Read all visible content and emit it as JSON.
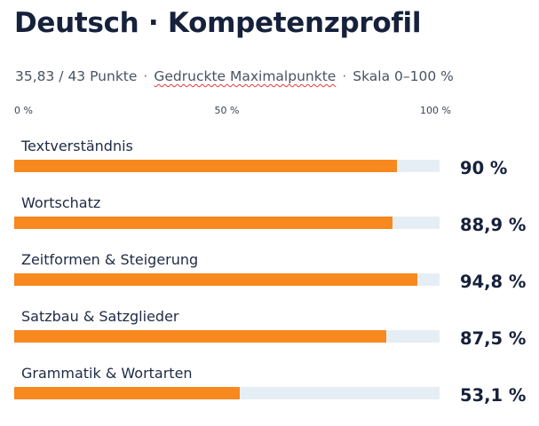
{
  "title": "Deutsch · Kompetenzprofil",
  "subtitle": {
    "points": "35,83 / 43 Punkte",
    "separator": "·",
    "basis": "Gedruckte Maximalpunkte",
    "scale": "Skala 0–100 %"
  },
  "chart_data": {
    "type": "bar",
    "orientation": "horizontal",
    "title": "Deutsch · Kompetenzprofil",
    "xlim": [
      0,
      100
    ],
    "ticks": [
      {
        "value": 0,
        "label": "0 %"
      },
      {
        "value": 50,
        "label": "50 %"
      },
      {
        "value": 100,
        "label": "100 %"
      }
    ],
    "categories": [
      "Textverständnis",
      "Wortschatz",
      "Zeitformen & Steigerung",
      "Satzbau & Satzglieder",
      "Grammatik & Wortarten"
    ],
    "values": [
      90,
      88.9,
      94.8,
      87.5,
      53.1
    ],
    "value_labels": [
      "90 %",
      "88,9 %",
      "94,8 %",
      "87,5 %",
      "53,1 %"
    ],
    "colors": {
      "bar": "#f7891f",
      "track": "#e6eef5"
    }
  }
}
